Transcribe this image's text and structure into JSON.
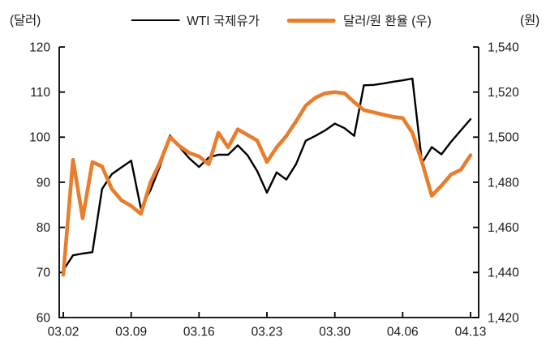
{
  "header": {
    "left_unit": "(달러)",
    "right_unit": "(원)"
  },
  "legend": [
    {
      "label": "WTI 국제유가",
      "color": "#000000",
      "thickness": 2.5
    },
    {
      "label": "달러/원 환율 (우)",
      "color": "#E87E2D",
      "thickness": 5
    }
  ],
  "chart_data": {
    "type": "line",
    "title": "",
    "grid": false,
    "legend_position": "top-center",
    "x": [
      "03.02",
      "03.03",
      "03.04",
      "03.05",
      "03.06",
      "03.07",
      "03.08",
      "03.09",
      "03.10",
      "03.11",
      "03.12",
      "03.13",
      "03.14",
      "03.15",
      "03.16",
      "03.17",
      "03.18",
      "03.19",
      "03.20",
      "03.21",
      "03.22",
      "03.23",
      "03.24",
      "03.25",
      "03.26",
      "03.27",
      "03.28",
      "03.29",
      "03.30",
      "03.31",
      "04.01",
      "04.02",
      "04.03",
      "04.04",
      "04.05",
      "04.06",
      "04.07",
      "04.08",
      "04.09",
      "04.10",
      "04.11",
      "04.12",
      "04.13"
    ],
    "x_tick_labels": [
      "03.02",
      "03.09",
      "03.16",
      "03.23",
      "03.30",
      "04.06",
      "04.13"
    ],
    "left_axis": {
      "label": "(달러)",
      "min": 60,
      "max": 120,
      "tick_values": [
        120,
        110,
        100,
        90,
        80,
        70,
        60
      ],
      "tick_labels": [
        "120",
        "110",
        "100",
        "90",
        "80",
        "70",
        "60"
      ]
    },
    "right_axis": {
      "label": "(원)",
      "min": 1420,
      "max": 1540,
      "tick_values": [
        1540,
        1520,
        1500,
        1480,
        1460,
        1440,
        1420
      ],
      "tick_labels": [
        "1,540",
        "1,520",
        "1,500",
        "1,480",
        "1,460",
        "1,440",
        "1,420"
      ]
    },
    "series": [
      {
        "name": "WTI 국제유가",
        "axis": "left",
        "color": "#000000",
        "width": 2.4,
        "values": [
          70.5,
          73.8,
          74.2,
          74.5,
          88.5,
          91.8,
          93.3,
          94.8,
          84.2,
          88.3,
          93.7,
          100.4,
          97.8,
          95.3,
          93.4,
          95.5,
          96.1,
          96.1,
          98.2,
          96.0,
          92.5,
          87.7,
          92.2,
          90.6,
          94.0,
          99.2,
          100.3,
          101.5,
          103.0,
          102.0,
          100.3,
          111.5,
          111.6,
          111.9,
          112.3,
          112.6,
          113.0,
          94.3,
          97.8,
          96.2,
          99.0,
          101.5,
          104.0
        ]
      },
      {
        "name": "달러/원 환율 (우)",
        "axis": "right",
        "color": "#E87E2D",
        "width": 4.6,
        "values": [
          1439,
          1490,
          1464,
          1489,
          1487,
          1477,
          1472,
          1469.5,
          1466,
          1480,
          1489,
          1500,
          1496,
          1493,
          1491.5,
          1488,
          1502,
          1495.5,
          1503.5,
          1501,
          1498.5,
          1489,
          1495.5,
          1500.5,
          1507,
          1514,
          1517.5,
          1519.5,
          1520,
          1519.5,
          1515.5,
          1512,
          1511,
          1510,
          1509,
          1508.5,
          1502,
          1489,
          1474,
          1478.5,
          1483.5,
          1485.5,
          1492
        ]
      }
    ]
  }
}
